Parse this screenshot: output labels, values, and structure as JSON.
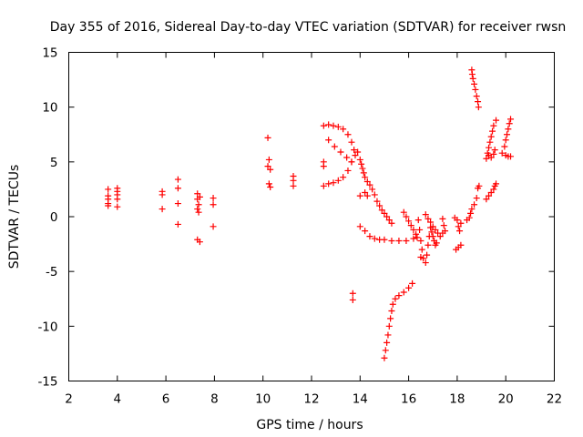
{
  "chart_data": {
    "type": "scatter",
    "title": "Day 355 of 2016, Sidereal Day-to-day VTEC variation (SDTVAR) for receiver rwsn",
    "xlabel": "GPS time / hours",
    "ylabel": "SDTVAR / TECUs",
    "xlim": [
      2,
      22
    ],
    "ylim": [
      -15,
      15
    ],
    "xticks": [
      2,
      4,
      6,
      8,
      10,
      12,
      14,
      16,
      18,
      20,
      22
    ],
    "yticks": [
      -15,
      -10,
      -5,
      0,
      5,
      10,
      15
    ],
    "xtick_labels": [
      "2",
      "4",
      "6",
      "8",
      "10",
      "12",
      "14",
      "16",
      "18",
      "20",
      "22"
    ],
    "ytick_labels": [
      "-15",
      "-10",
      "-5",
      "0",
      "5",
      "10",
      "15"
    ],
    "grid": false,
    "marker": "plus",
    "color": "#ff0000",
    "points": [
      [
        3.62,
        2.5
      ],
      [
        3.62,
        1.9
      ],
      [
        3.62,
        1.6
      ],
      [
        3.62,
        1.2
      ],
      [
        3.62,
        1.0
      ],
      [
        4.0,
        2.6
      ],
      [
        4.0,
        2.3
      ],
      [
        4.0,
        2.0
      ],
      [
        4.0,
        1.6
      ],
      [
        4.0,
        0.9
      ],
      [
        5.85,
        2.3
      ],
      [
        5.85,
        2.0
      ],
      [
        5.85,
        0.7
      ],
      [
        6.5,
        3.4
      ],
      [
        6.5,
        2.6
      ],
      [
        6.5,
        1.2
      ],
      [
        6.5,
        -0.7
      ],
      [
        7.3,
        2.1
      ],
      [
        7.3,
        1.6
      ],
      [
        7.35,
        1.1
      ],
      [
        7.3,
        0.7
      ],
      [
        7.35,
        0.4
      ],
      [
        7.3,
        -2.1
      ],
      [
        7.4,
        -2.3
      ],
      [
        7.4,
        1.8
      ],
      [
        7.95,
        1.7
      ],
      [
        7.95,
        1.1
      ],
      [
        7.95,
        -0.9
      ],
      [
        10.2,
        7.2
      ],
      [
        10.25,
        5.2
      ],
      [
        10.2,
        4.6
      ],
      [
        10.3,
        4.3
      ],
      [
        10.25,
        3.0
      ],
      [
        10.3,
        2.7
      ],
      [
        11.25,
        3.7
      ],
      [
        11.25,
        3.3
      ],
      [
        11.25,
        2.8
      ],
      [
        12.5,
        8.3
      ],
      [
        12.7,
        8.4
      ],
      [
        12.9,
        8.3
      ],
      [
        13.1,
        8.2
      ],
      [
        13.3,
        8.0
      ],
      [
        13.5,
        7.5
      ],
      [
        13.65,
        6.8
      ],
      [
        13.75,
        6.1
      ],
      [
        12.7,
        7.0
      ],
      [
        12.95,
        6.4
      ],
      [
        13.2,
        5.9
      ],
      [
        13.45,
        5.4
      ],
      [
        13.65,
        5.0
      ],
      [
        12.5,
        5.0
      ],
      [
        12.5,
        4.6
      ],
      [
        12.5,
        2.8
      ],
      [
        12.7,
        3.0
      ],
      [
        12.9,
        3.1
      ],
      [
        13.1,
        3.3
      ],
      [
        13.3,
        3.6
      ],
      [
        13.5,
        4.2
      ],
      [
        13.65,
        5.0
      ],
      [
        13.8,
        5.6
      ],
      [
        13.9,
        5.9
      ],
      [
        13.7,
        -7.0
      ],
      [
        13.7,
        -7.6
      ],
      [
        14.0,
        5.2
      ],
      [
        14.05,
        4.8
      ],
      [
        14.1,
        4.4
      ],
      [
        14.15,
        4.0
      ],
      [
        14.2,
        3.6
      ],
      [
        14.3,
        3.2
      ],
      [
        14.4,
        2.9
      ],
      [
        14.5,
        2.5
      ],
      [
        14.6,
        2.0
      ],
      [
        14.7,
        1.4
      ],
      [
        14.8,
        1.0
      ],
      [
        14.9,
        0.6
      ],
      [
        15.0,
        0.3
      ],
      [
        15.1,
        0.0
      ],
      [
        15.2,
        -0.3
      ],
      [
        15.3,
        -0.6
      ],
      [
        14.2,
        2.2
      ],
      [
        14.3,
        1.9
      ],
      [
        14.0,
        1.9
      ],
      [
        14.0,
        -0.9
      ],
      [
        14.2,
        -1.3
      ],
      [
        14.4,
        -1.8
      ],
      [
        14.6,
        -2.0
      ],
      [
        14.8,
        -2.1
      ],
      [
        15.0,
        -2.1
      ],
      [
        15.3,
        -2.2
      ],
      [
        15.6,
        -2.2
      ],
      [
        15.9,
        -2.2
      ],
      [
        16.2,
        -2.0
      ],
      [
        15.8,
        0.4
      ],
      [
        15.9,
        0.0
      ],
      [
        16.0,
        -0.4
      ],
      [
        16.1,
        -0.8
      ],
      [
        16.2,
        -1.2
      ],
      [
        16.3,
        -1.6
      ],
      [
        16.35,
        -1.9
      ],
      [
        15.0,
        -12.9
      ],
      [
        15.05,
        -12.2
      ],
      [
        15.1,
        -11.5
      ],
      [
        15.15,
        -10.8
      ],
      [
        15.2,
        -10.0
      ],
      [
        15.25,
        -9.3
      ],
      [
        15.3,
        -8.6
      ],
      [
        15.35,
        -8.0
      ],
      [
        15.45,
        -7.5
      ],
      [
        15.6,
        -7.2
      ],
      [
        15.8,
        -6.9
      ],
      [
        16.0,
        -6.5
      ],
      [
        16.15,
        -6.1
      ],
      [
        16.4,
        -0.3
      ],
      [
        16.45,
        -1.2
      ],
      [
        16.5,
        -2.2
      ],
      [
        16.55,
        -3.0
      ],
      [
        16.5,
        -3.7
      ],
      [
        16.6,
        -3.8
      ],
      [
        16.7,
        -4.2
      ],
      [
        16.75,
        -3.5
      ],
      [
        16.8,
        -2.6
      ],
      [
        16.85,
        -1.8
      ],
      [
        16.7,
        0.2
      ],
      [
        16.8,
        -0.2
      ],
      [
        16.9,
        -0.5
      ],
      [
        17.0,
        -0.9
      ],
      [
        17.1,
        -1.2
      ],
      [
        17.2,
        -1.5
      ],
      [
        17.3,
        -1.8
      ],
      [
        17.4,
        -1.5
      ],
      [
        16.9,
        -1.0
      ],
      [
        16.95,
        -1.4
      ],
      [
        17.0,
        -1.8
      ],
      [
        17.05,
        -2.2
      ],
      [
        17.1,
        -2.6
      ],
      [
        17.15,
        -2.4
      ],
      [
        17.4,
        -0.2
      ],
      [
        17.45,
        -0.8
      ],
      [
        17.5,
        -1.3
      ],
      [
        17.9,
        -0.1
      ],
      [
        18.0,
        -0.3
      ],
      [
        18.05,
        -0.9
      ],
      [
        18.1,
        -1.3
      ],
      [
        18.15,
        -0.6
      ],
      [
        17.95,
        -3.0
      ],
      [
        18.05,
        -2.8
      ],
      [
        18.15,
        -2.6
      ],
      [
        18.4,
        -0.3
      ],
      [
        18.5,
        -0.1
      ],
      [
        18.55,
        0.3
      ],
      [
        18.6,
        0.7
      ],
      [
        18.7,
        1.1
      ],
      [
        18.8,
        1.7
      ],
      [
        18.85,
        2.6
      ],
      [
        18.9,
        2.8
      ],
      [
        18.6,
        13.4
      ],
      [
        18.62,
        13.0
      ],
      [
        18.65,
        12.6
      ],
      [
        18.7,
        12.1
      ],
      [
        18.75,
        11.6
      ],
      [
        18.8,
        11.0
      ],
      [
        18.85,
        10.5
      ],
      [
        18.88,
        10.0
      ],
      [
        19.2,
        1.6
      ],
      [
        19.3,
        1.9
      ],
      [
        19.4,
        2.2
      ],
      [
        19.5,
        2.5
      ],
      [
        19.55,
        2.8
      ],
      [
        19.6,
        3.0
      ],
      [
        19.2,
        5.3
      ],
      [
        19.25,
        5.8
      ],
      [
        19.3,
        6.3
      ],
      [
        19.35,
        6.8
      ],
      [
        19.4,
        7.3
      ],
      [
        19.45,
        7.8
      ],
      [
        19.5,
        8.3
      ],
      [
        19.6,
        8.8
      ],
      [
        19.3,
        5.6
      ],
      [
        19.4,
        5.4
      ],
      [
        19.5,
        5.7
      ],
      [
        19.55,
        6.1
      ],
      [
        19.85,
        5.8
      ],
      [
        19.95,
        6.4
      ],
      [
        20.0,
        7.0
      ],
      [
        20.05,
        7.5
      ],
      [
        20.1,
        8.0
      ],
      [
        20.15,
        8.5
      ],
      [
        20.2,
        8.9
      ],
      [
        20.0,
        5.6
      ],
      [
        20.1,
        5.5
      ],
      [
        20.2,
        5.5
      ]
    ]
  }
}
